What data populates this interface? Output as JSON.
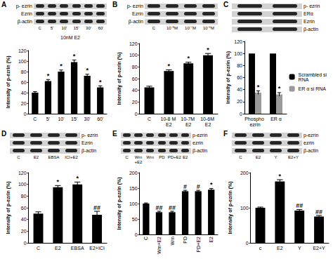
{
  "chart_data": [
    {
      "type": "bar",
      "title": "A",
      "blot": {
        "rows": [
          "p- ezrin",
          "Ezrin",
          "β-actin"
        ],
        "lanes": [
          "C",
          "5'",
          "10'",
          "15'",
          "30'",
          "60'"
        ],
        "caption": "10nM E2"
      },
      "categories": [
        "C",
        "5'",
        "10'",
        "15'",
        "30'",
        "60'"
      ],
      "values": [
        40,
        62,
        80,
        98,
        72,
        50
      ],
      "errors": [
        2,
        3,
        3,
        4,
        3,
        3
      ],
      "annotations": [
        null,
        "*",
        "*",
        "*",
        "*",
        "*"
      ],
      "color": "#000000",
      "y_label": "Intensity of p-ezrin (%)",
      "ylim": [
        0,
        120
      ],
      "yticks": [
        0,
        20,
        40,
        60,
        80,
        100,
        120
      ],
      "grid": false
    },
    {
      "type": "bar",
      "title": "B",
      "blot": {
        "rows": [
          "p- ezrin",
          "Ezrin",
          "β-actin"
        ],
        "lanes": [
          "C",
          "10⁻⁸M",
          "10⁻⁷M",
          "10⁻⁶M"
        ]
      },
      "categories": [
        "C",
        "10-8 M E2",
        "10-7M E2",
        "10-6M E2"
      ],
      "values": [
        45,
        73,
        86,
        100
      ],
      "errors": [
        2,
        2,
        2,
        3
      ],
      "annotations": [
        null,
        "*",
        "*",
        "*"
      ],
      "color": "#000000",
      "y_label": "Intensity of p-ezrin (%)",
      "ylim": [
        0,
        120
      ],
      "yticks": [
        0,
        20,
        40,
        60,
        80,
        100,
        120
      ],
      "grid": false
    },
    {
      "type": "bar",
      "title": "C",
      "blot": {
        "rows": [
          "p- ezrin",
          "ERα",
          "Ezrin",
          "β-actin"
        ]
      },
      "categories": [
        "Phospho ezrin",
        "ER α"
      ],
      "series": [
        {
          "name": "Scrambled si RNA",
          "color": "#000000",
          "values": [
            100,
            100
          ]
        },
        {
          "name": "ER α si RNA",
          "color": "#9a9a9a",
          "values": [
            35,
            32
          ],
          "errors": [
            3,
            3
          ],
          "annotations": [
            "*",
            "*"
          ]
        }
      ],
      "legend": "right",
      "y_label": "Intensity of p-ezrin (%)",
      "ylim": [
        0,
        120
      ],
      "yticks": [
        0,
        20,
        40,
        60,
        80,
        100,
        120
      ],
      "grid": false
    },
    {
      "type": "bar",
      "title": "D",
      "blot": {
        "rows": [
          "p- ezrin",
          "Ezrin",
          "β-actin"
        ],
        "lanes": [
          "C",
          "E2",
          "EBSA",
          "ICI+E2"
        ]
      },
      "categories": [
        "C",
        "E2",
        "EBSA",
        "E2+ICI"
      ],
      "values": [
        50,
        95,
        100,
        48
      ],
      "errors": [
        3,
        3,
        4,
        6
      ],
      "annotations": [
        null,
        "*",
        "*",
        "##"
      ],
      "color": "#000000",
      "y_label": "Intensity of p-ezrin (%)",
      "ylim": [
        0,
        120
      ],
      "yticks": [
        0,
        20,
        40,
        60,
        80,
        100,
        120
      ],
      "grid": false
    },
    {
      "type": "bar",
      "title": "E",
      "blot": {
        "rows": [
          "p-ezrin",
          "ezrin",
          "β-actin"
        ],
        "lanes": [
          "C",
          "Wm +E2",
          "Wm",
          "PD",
          "PD+E2",
          "E2"
        ]
      },
      "categories": [
        "C",
        "Wm+E2",
        "Wm",
        "PD",
        "PD+E2",
        "E2"
      ],
      "values": [
        100,
        72,
        72,
        140,
        140,
        145
      ],
      "errors": [
        2,
        3,
        3,
        3,
        3,
        4
      ],
      "annotations": [
        null,
        "##",
        "##",
        "#",
        "#",
        "*"
      ],
      "color": "#000000",
      "y_label": "Intensity of p-ezrin (%)",
      "ylim": [
        0,
        200
      ],
      "yticks": [
        0,
        50,
        100,
        150,
        200
      ],
      "grid": false
    },
    {
      "type": "bar",
      "title": "F",
      "blot": {
        "rows": [
          "p-ezrin",
          "ezrin",
          "β-actin"
        ],
        "lanes": [
          "C",
          "E2",
          "Y",
          "E2+Y"
        ]
      },
      "categories": [
        "c",
        "E2",
        "Y",
        "E2+Y"
      ],
      "values": [
        100,
        175,
        92,
        75
      ],
      "errors": [
        2,
        5,
        3,
        3
      ],
      "annotations": [
        null,
        "*",
        "##",
        "##"
      ],
      "color": "#000000",
      "y_label": "Intensity of p-ezrin (%)",
      "ylim": [
        0,
        200
      ],
      "yticks": [
        0,
        100,
        200
      ],
      "grid": false
    }
  ]
}
